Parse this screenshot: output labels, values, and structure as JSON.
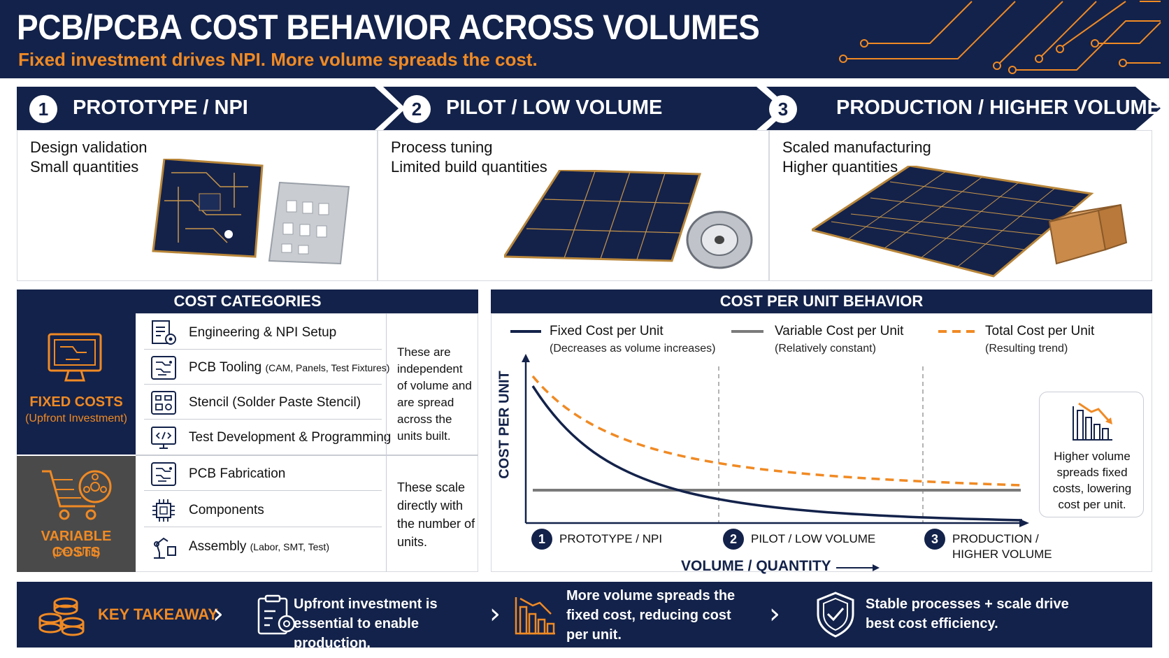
{
  "header": {
    "title": "PCB/PCBA COST BEHAVIOR ACROSS VOLUMES",
    "subtitle": "Fixed investment drives NPI. More volume spreads the cost."
  },
  "stages": [
    {
      "num": "1",
      "title": "PROTOTYPE / NPI",
      "line1": "Design validation",
      "line2": "Small quantities"
    },
    {
      "num": "2",
      "title": "PILOT / LOW VOLUME",
      "line1": "Process tuning",
      "line2": "Limited build quantities"
    },
    {
      "num": "3",
      "title": "PRODUCTION / HIGHER VOLUME",
      "line1": "Scaled manufacturing",
      "line2": "Higher quantities"
    }
  ],
  "cost_categories": {
    "heading": "COST CATEGORIES",
    "fixed": {
      "label": "FIXED COSTS",
      "sublabel": "(Upfront Investment)",
      "items": [
        {
          "label": "Engineering & NPI Setup",
          "detail": "",
          "icon": "document-gear-icon"
        },
        {
          "label": "PCB Tooling",
          "detail": "(CAM, Panels, Test Fixtures)",
          "icon": "circuit-board-icon"
        },
        {
          "label": "Stencil (Solder Paste Stencil)",
          "detail": "",
          "icon": "stencil-icon"
        },
        {
          "label": "Test Development & Programming",
          "detail": "",
          "icon": "code-monitor-icon"
        }
      ],
      "note": "These are independent of volume and are spread across the units built."
    },
    "variable": {
      "label": "VARIABLE COSTS",
      "sublabel": "(Per Unit)",
      "items": [
        {
          "label": "PCB Fabrication",
          "detail": "",
          "icon": "circuit-board-icon"
        },
        {
          "label": "Components",
          "detail": "",
          "icon": "chip-icon"
        },
        {
          "label": "Assembly",
          "detail": "(Labor, SMT, Test)",
          "icon": "robot-arm-icon"
        }
      ],
      "note": "These scale directly with the number of units."
    }
  },
  "cost_per_unit": {
    "heading": "COST PER UNIT BEHAVIOR",
    "legend": [
      {
        "name": "Fixed Cost per Unit",
        "sub": "(Decreases as volume increases)"
      },
      {
        "name": "Variable Cost per Unit",
        "sub": "(Relatively constant)"
      },
      {
        "name": "Total Cost per Unit",
        "sub": "(Resulting trend)"
      }
    ],
    "ylabel": "COST PER UNIT",
    "xlabel": "VOLUME / QUANTITY",
    "stage_marks": [
      {
        "num": "1",
        "label": "PROTOTYPE / NPI"
      },
      {
        "num": "2",
        "label": "PILOT / LOW VOLUME"
      },
      {
        "num": "3",
        "label": "PRODUCTION /\nHIGHER VOLUME"
      }
    ],
    "callout": "Higher volume spreads fixed costs, lowering cost per unit."
  },
  "colors": {
    "navy": "#13224a",
    "orange": "#f08a24",
    "variable_gray": "#7a7a7a",
    "variable_panel": "#4a4a4a"
  },
  "takeaway": {
    "label": "KEY TAKEAWAY",
    "items": [
      {
        "text": "Upfront investment is essential to enable production.",
        "icon": "clipboard-gear-icon"
      },
      {
        "text": "More volume spreads the fixed cost, reducing cost per unit.",
        "icon": "bar-chart-down-icon"
      },
      {
        "text": "Stable processes + scale drive best cost efficiency.",
        "icon": "shield-check-icon"
      }
    ]
  }
}
